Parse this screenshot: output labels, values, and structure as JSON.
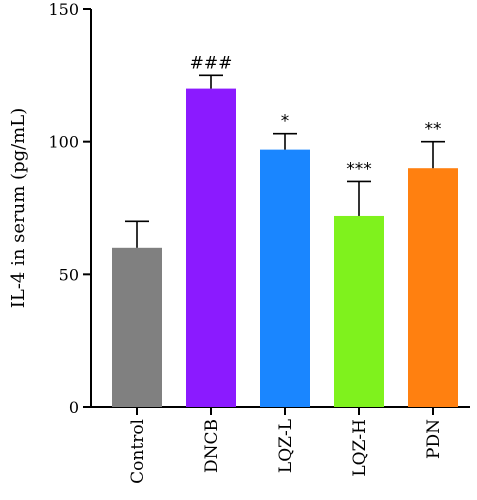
{
  "chart_data": {
    "type": "bar",
    "categories": [
      "Control",
      "DNCB",
      "LQZ-L",
      "LQZ-H",
      "PDN"
    ],
    "values": [
      60,
      120,
      97,
      72,
      90
    ],
    "errors": [
      10,
      5,
      6,
      13,
      10
    ],
    "annotations": [
      "",
      "###",
      "*",
      "***",
      "**"
    ],
    "colors": [
      "#808080",
      "#8b1aff",
      "#1a86ff",
      "#7ff21d",
      "#ff8010"
    ],
    "ylabel": "IL-4 in serum (pg/mL)",
    "ylim": [
      0,
      150
    ],
    "yticks": [
      0,
      50,
      100,
      150
    ],
    "grid": false
  }
}
